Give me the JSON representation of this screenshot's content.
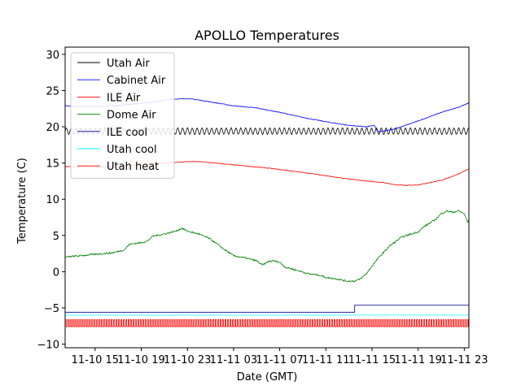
{
  "chart_data": {
    "type": "line",
    "title": "APOLLO Temperatures",
    "xlabel": "Date (GMT)",
    "ylabel": "Temperature (C)",
    "xlim": [
      12.4,
      47.4
    ],
    "ylim": [
      -10.5,
      31
    ],
    "x_unit": "hours since 2017-11-10 00:00 GMT (visible range)",
    "x_ticks": [
      {
        "value": 15,
        "label": "11-10 15"
      },
      {
        "value": 19,
        "label": "11-10 19"
      },
      {
        "value": 23,
        "label": "11-10 23"
      },
      {
        "value": 27,
        "label": "11-11 03"
      },
      {
        "value": 31,
        "label": "11-11 07"
      },
      {
        "value": 35,
        "label": "11-11 11"
      },
      {
        "value": 39,
        "label": "11-11 15"
      },
      {
        "value": 43,
        "label": "11-11 19"
      },
      {
        "value": 47,
        "label": "11-11 23"
      }
    ],
    "y_ticks": [
      -10,
      -5,
      0,
      5,
      10,
      15,
      20,
      25,
      30
    ],
    "legend_position": "top-left",
    "series": [
      {
        "name": "Utah Air",
        "color": "#000000",
        "style": "oscillating",
        "baseline": [
          [
            12.4,
            19.4
          ],
          [
            47.4,
            19.4
          ]
        ],
        "amplitude": 0.45,
        "period": 0.42
      },
      {
        "name": "Cabinet Air",
        "color": "#0000ff",
        "points": [
          [
            12.4,
            22.9
          ],
          [
            14,
            22.8
          ],
          [
            16,
            22.8
          ],
          [
            18,
            23.1
          ],
          [
            20,
            23.4
          ],
          [
            21.5,
            23.8
          ],
          [
            23,
            23.9
          ],
          [
            24,
            23.7
          ],
          [
            25.5,
            23.3
          ],
          [
            27,
            22.9
          ],
          [
            29,
            22.6
          ],
          [
            31,
            22.0
          ],
          [
            33,
            21.3
          ],
          [
            35,
            20.7
          ],
          [
            37,
            20.2
          ],
          [
            38.5,
            20.0
          ],
          [
            39.2,
            20.2
          ],
          [
            39.5,
            19.3
          ],
          [
            41,
            19.7
          ],
          [
            43,
            20.8
          ],
          [
            45,
            22.0
          ],
          [
            46.5,
            22.7
          ],
          [
            47.4,
            23.3
          ]
        ],
        "noise": 0.05
      },
      {
        "name": "ILE Air",
        "color": "#ff0000",
        "points": [
          [
            12.4,
            14.5
          ],
          [
            15,
            14.4
          ],
          [
            17,
            14.5
          ],
          [
            19,
            14.8
          ],
          [
            21,
            15.0
          ],
          [
            23,
            15.2
          ],
          [
            24,
            15.2
          ],
          [
            26,
            14.9
          ],
          [
            28,
            14.6
          ],
          [
            30,
            14.3
          ],
          [
            32,
            13.9
          ],
          [
            34,
            13.5
          ],
          [
            36,
            13.0
          ],
          [
            38,
            12.6
          ],
          [
            40,
            12.3
          ],
          [
            41,
            12.0
          ],
          [
            42,
            11.9
          ],
          [
            43,
            12.0
          ],
          [
            45,
            12.6
          ],
          [
            46.5,
            13.5
          ],
          [
            47.4,
            14.2
          ]
        ],
        "noise": 0.05
      },
      {
        "name": "Dome Air",
        "color": "#008000",
        "points": [
          [
            12.4,
            2.0
          ],
          [
            13,
            2.1
          ],
          [
            15,
            2.4
          ],
          [
            16.5,
            2.6
          ],
          [
            17.5,
            3.0
          ],
          [
            18,
            3.8
          ],
          [
            19,
            4.0
          ],
          [
            19.5,
            4.2
          ],
          [
            20,
            4.9
          ],
          [
            21,
            5.2
          ],
          [
            22,
            5.6
          ],
          [
            22.5,
            6.0
          ],
          [
            23,
            5.6
          ],
          [
            24,
            5.2
          ],
          [
            25,
            4.5
          ],
          [
            26,
            3.3
          ],
          [
            27,
            2.2
          ],
          [
            28,
            1.9
          ],
          [
            29,
            1.5
          ],
          [
            29.5,
            0.9
          ],
          [
            30,
            1.4
          ],
          [
            30.5,
            1.5
          ],
          [
            31,
            1.3
          ],
          [
            31.5,
            0.6
          ],
          [
            32.5,
            0.2
          ],
          [
            33.5,
            -0.3
          ],
          [
            34.5,
            -0.5
          ],
          [
            35,
            -0.8
          ],
          [
            36,
            -1.0
          ],
          [
            36.8,
            -1.3
          ],
          [
            37.5,
            -1.3
          ],
          [
            38,
            -1.0
          ],
          [
            38.5,
            -0.3
          ],
          [
            39.5,
            1.8
          ],
          [
            40.5,
            3.5
          ],
          [
            41.5,
            4.7
          ],
          [
            42,
            5.0
          ],
          [
            43,
            5.5
          ],
          [
            43.5,
            6.2
          ],
          [
            44.5,
            7.2
          ],
          [
            45,
            8.0
          ],
          [
            45.5,
            8.4
          ],
          [
            46,
            8.2
          ],
          [
            46.5,
            8.4
          ],
          [
            47,
            8.0
          ],
          [
            47.3,
            6.8
          ],
          [
            47.4,
            7.2
          ]
        ],
        "noise": 0.12
      },
      {
        "name": "ILE cool",
        "color": "#00008b",
        "style": "step",
        "points": [
          [
            12.4,
            -5.6
          ],
          [
            37.5,
            -5.6
          ],
          [
            37.5,
            -4.6
          ],
          [
            47.4,
            -4.6
          ]
        ]
      },
      {
        "name": "Utah cool",
        "color": "#00ffff",
        "points": [
          [
            12.4,
            -6.0
          ],
          [
            47.4,
            -6.0
          ]
        ]
      },
      {
        "name": "Utah heat",
        "color": "#ff0000",
        "style": "pulse",
        "low": -7.6,
        "high": -6.6,
        "period": 0.21,
        "duty": 0.4
      }
    ]
  }
}
